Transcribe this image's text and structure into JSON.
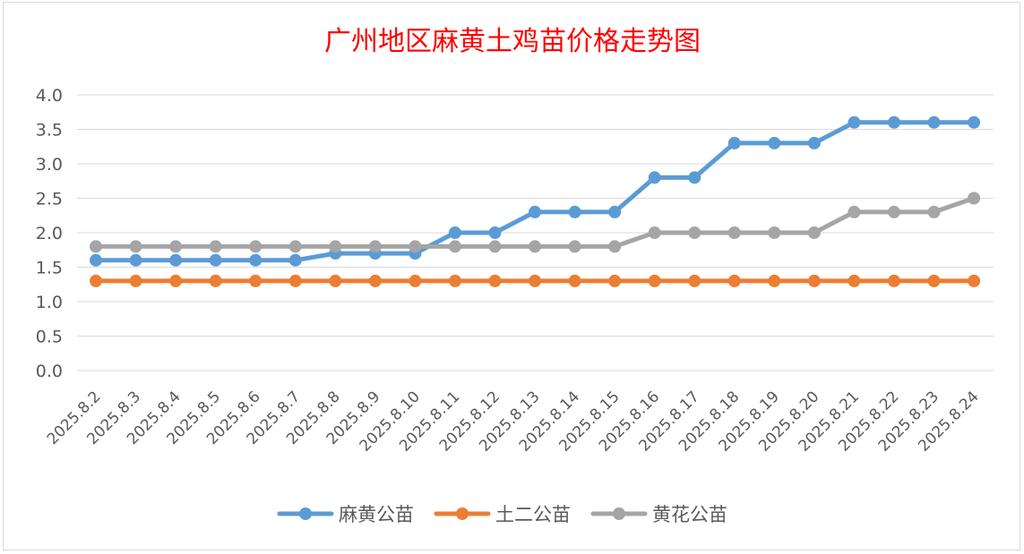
{
  "chart_data": {
    "type": "line",
    "title": "广州地区麻黄土鸡苗价格走势图",
    "xlabel": "",
    "ylabel": "",
    "ylim": [
      0,
      4.0
    ],
    "yticks": [
      "0.0",
      "0.5",
      "1.0",
      "1.5",
      "2.0",
      "2.5",
      "3.0",
      "3.5",
      "4.0"
    ],
    "grid": true,
    "legend_position": "bottom",
    "categories": [
      "2025.8.2",
      "2025.8.3",
      "2025.8.4",
      "2025.8.5",
      "2025.8.6",
      "2025.8.7",
      "2025.8.8",
      "2025.8.9",
      "2025.8.10",
      "2025.8.11",
      "2025.8.12",
      "2025.8.13",
      "2025.8.14",
      "2025.8.15",
      "2025.8.16",
      "2025.8.17",
      "2025.8.18",
      "2025.8.19",
      "2025.8.20",
      "2025.8.21",
      "2025.8.22",
      "2025.8.23",
      "2025.8.24"
    ],
    "series": [
      {
        "name": "麻黄公苗",
        "color": "#5b9bd5",
        "values": [
          1.6,
          1.6,
          1.6,
          1.6,
          1.6,
          1.6,
          1.7,
          1.7,
          1.7,
          2.0,
          2.0,
          2.3,
          2.3,
          2.3,
          2.8,
          2.8,
          3.3,
          3.3,
          3.3,
          3.6,
          3.6,
          3.6,
          3.6
        ]
      },
      {
        "name": "土二公苗",
        "color": "#ed7d31",
        "values": [
          1.3,
          1.3,
          1.3,
          1.3,
          1.3,
          1.3,
          1.3,
          1.3,
          1.3,
          1.3,
          1.3,
          1.3,
          1.3,
          1.3,
          1.3,
          1.3,
          1.3,
          1.3,
          1.3,
          1.3,
          1.3,
          1.3,
          1.3
        ]
      },
      {
        "name": "黄花公苗",
        "color": "#a5a5a5",
        "values": [
          1.8,
          1.8,
          1.8,
          1.8,
          1.8,
          1.8,
          1.8,
          1.8,
          1.8,
          1.8,
          1.8,
          1.8,
          1.8,
          1.8,
          2.0,
          2.0,
          2.0,
          2.0,
          2.0,
          2.3,
          2.3,
          2.3,
          2.5
        ]
      }
    ]
  }
}
